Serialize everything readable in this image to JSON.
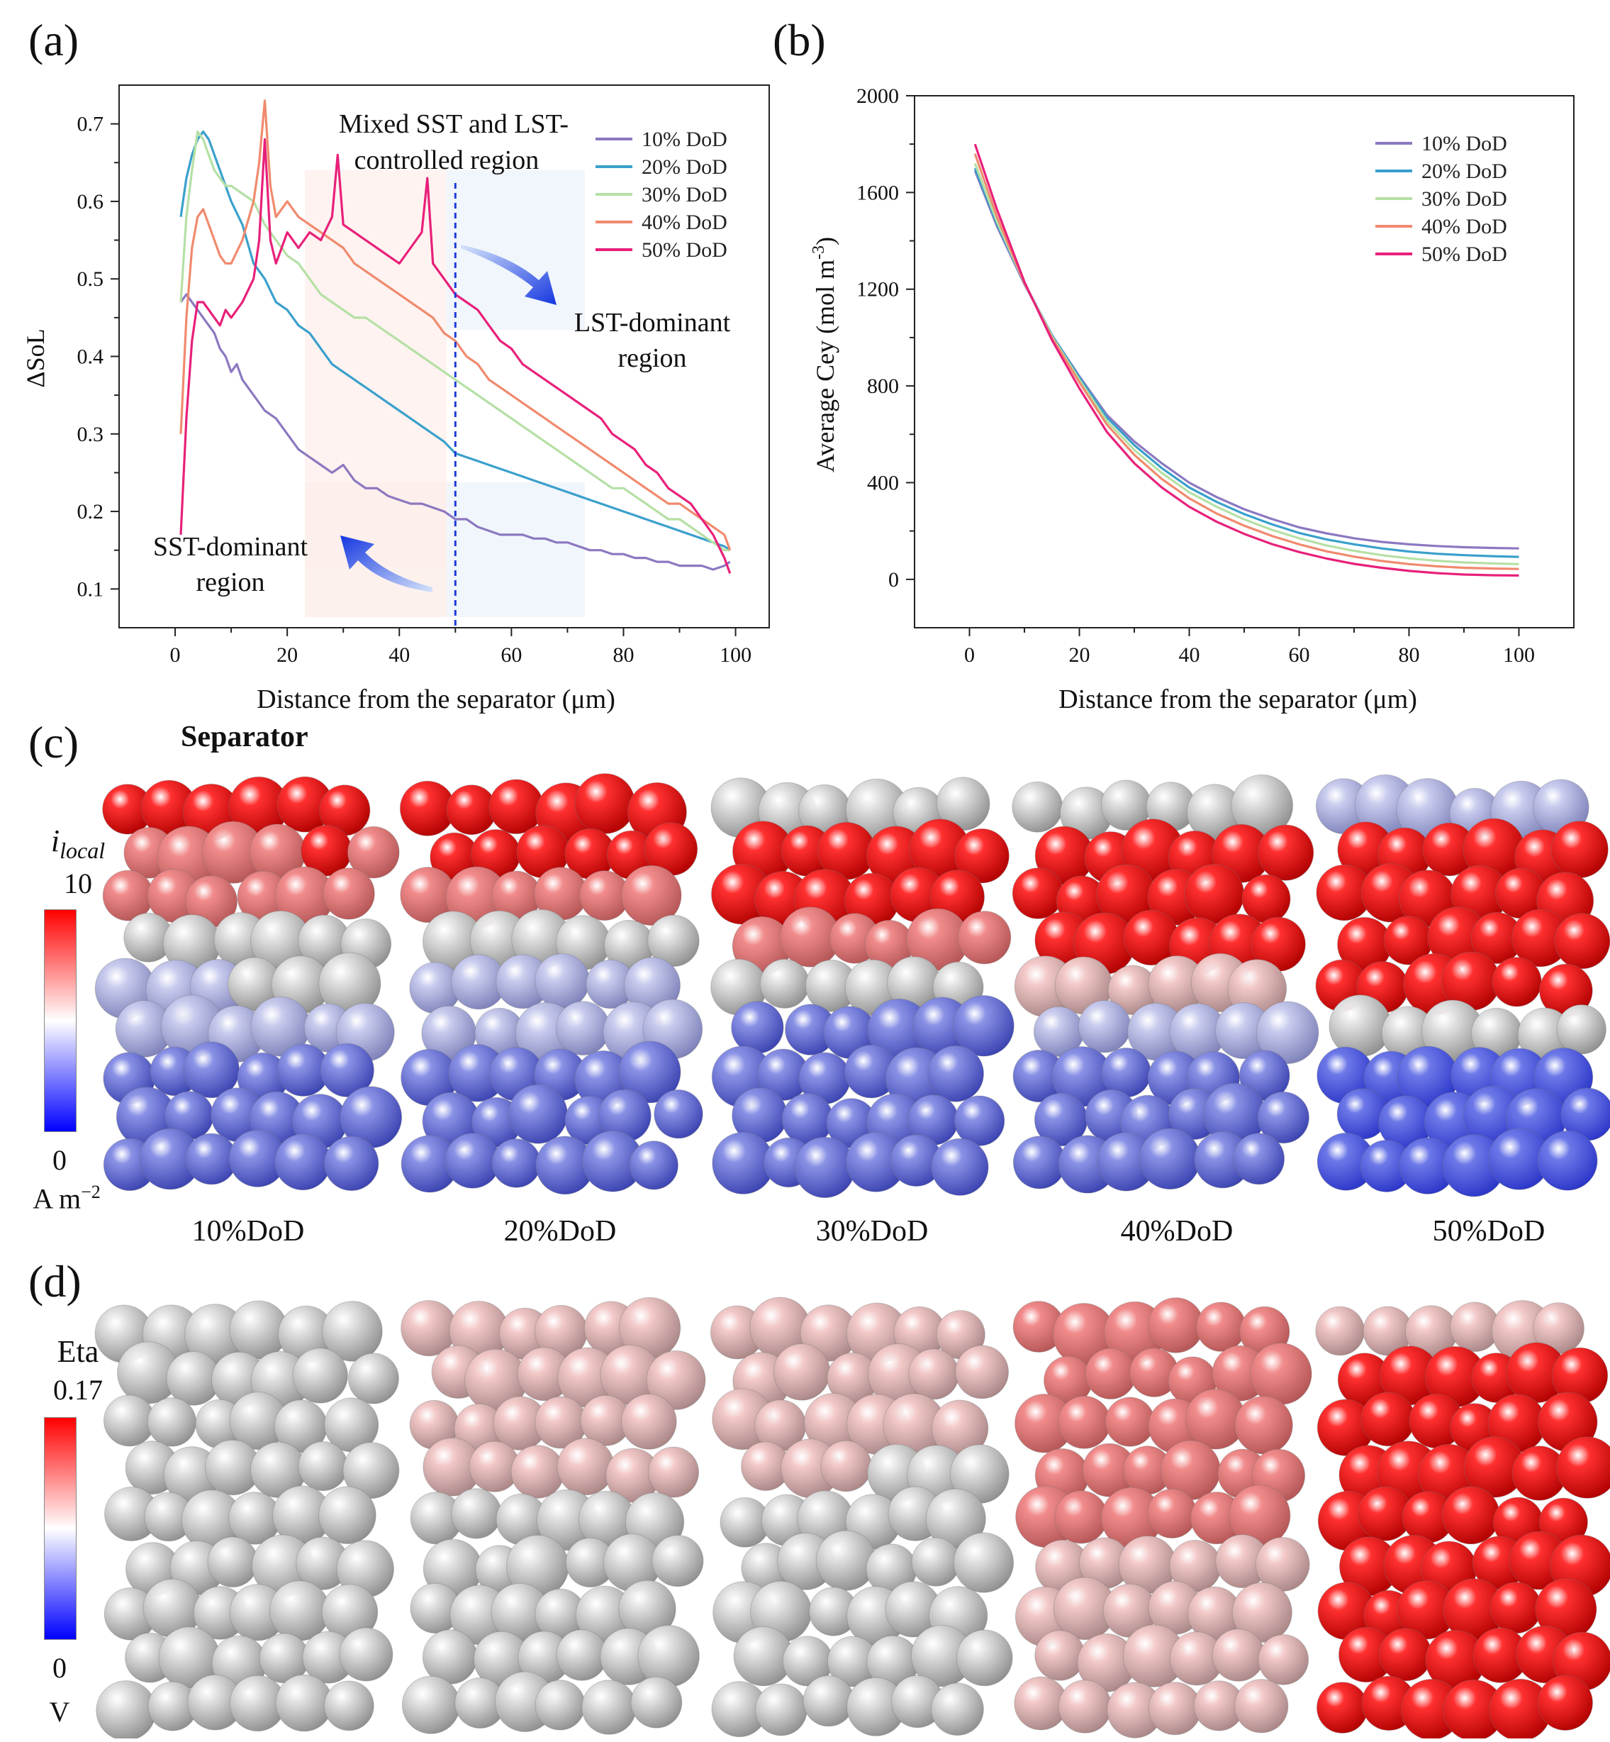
{
  "panels": {
    "a": "(a)",
    "b": "(b)",
    "c": "(c)",
    "d": "(d)"
  },
  "chart_data": [
    {
      "id": "a",
      "type": "line",
      "title": "",
      "xlabel": "Distance from the separator (μm)",
      "ylabel": "ΔSoL",
      "xlim": [
        -10,
        106
      ],
      "ylim": [
        0.05,
        0.75
      ],
      "xticks": [
        0,
        20,
        40,
        60,
        80,
        100
      ],
      "yticks": [
        0.1,
        0.2,
        0.3,
        0.4,
        0.5,
        0.6,
        0.7
      ],
      "legend_position": "top-right",
      "annotations": {
        "mixed_line1": "Mixed SST and LST-",
        "mixed_line2": "controlled region",
        "lst_line1": "LST-dominant",
        "lst_line2": "region",
        "sst_line1": "SST-dominant",
        "sst_line2": "region"
      },
      "divider_x": 50,
      "series": [
        {
          "name": "10% DoD",
          "color": "#8C78C0",
          "x": [
            1,
            2,
            3,
            4,
            5,
            6,
            7,
            8,
            9,
            10,
            11,
            12,
            14,
            16,
            18,
            20,
            22,
            24,
            26,
            28,
            30,
            32,
            34,
            36,
            38,
            40,
            42,
            44,
            46,
            48,
            50,
            52,
            54,
            56,
            58,
            60,
            62,
            64,
            66,
            68,
            70,
            72,
            74,
            76,
            78,
            80,
            82,
            84,
            86,
            88,
            90,
            92,
            94,
            96,
            98,
            99
          ],
          "values": [
            0.47,
            0.48,
            0.47,
            0.46,
            0.45,
            0.44,
            0.43,
            0.41,
            0.4,
            0.38,
            0.39,
            0.37,
            0.35,
            0.33,
            0.32,
            0.3,
            0.28,
            0.27,
            0.26,
            0.25,
            0.26,
            0.24,
            0.23,
            0.23,
            0.22,
            0.215,
            0.21,
            0.21,
            0.205,
            0.2,
            0.19,
            0.19,
            0.18,
            0.175,
            0.17,
            0.17,
            0.17,
            0.165,
            0.165,
            0.16,
            0.16,
            0.155,
            0.15,
            0.15,
            0.145,
            0.145,
            0.14,
            0.14,
            0.135,
            0.135,
            0.13,
            0.13,
            0.13,
            0.125,
            0.13,
            0.135
          ]
        },
        {
          "name": "20% DoD",
          "color": "#3AA0CC",
          "x": [
            1,
            2,
            3,
            4,
            5,
            6,
            7,
            8,
            9,
            10,
            12,
            14,
            16,
            18,
            20,
            22,
            24,
            26,
            28,
            30,
            32,
            34,
            36,
            38,
            40,
            42,
            44,
            46,
            48,
            50,
            52,
            54,
            56,
            58,
            60,
            62,
            64,
            66,
            68,
            70,
            72,
            74,
            76,
            78,
            80,
            82,
            84,
            86,
            88,
            90,
            92,
            94,
            96,
            98,
            99
          ],
          "values": [
            0.58,
            0.63,
            0.66,
            0.68,
            0.69,
            0.68,
            0.66,
            0.64,
            0.62,
            0.6,
            0.57,
            0.52,
            0.5,
            0.47,
            0.46,
            0.44,
            0.43,
            0.41,
            0.39,
            0.38,
            0.37,
            0.36,
            0.35,
            0.34,
            0.33,
            0.32,
            0.31,
            0.3,
            0.29,
            0.275,
            0.27,
            0.265,
            0.26,
            0.255,
            0.25,
            0.245,
            0.24,
            0.235,
            0.23,
            0.225,
            0.22,
            0.215,
            0.21,
            0.205,
            0.2,
            0.195,
            0.19,
            0.185,
            0.18,
            0.175,
            0.17,
            0.165,
            0.16,
            0.155,
            0.15
          ]
        },
        {
          "name": "30% DoD",
          "color": "#B5E0A5",
          "x": [
            1,
            2,
            3,
            4,
            5,
            6,
            7,
            8,
            9,
            10,
            12,
            14,
            16,
            18,
            20,
            22,
            24,
            26,
            28,
            30,
            32,
            34,
            36,
            38,
            40,
            42,
            44,
            46,
            48,
            50,
            52,
            54,
            56,
            58,
            60,
            62,
            64,
            66,
            68,
            70,
            72,
            74,
            76,
            78,
            80,
            82,
            84,
            86,
            88,
            90,
            92,
            94,
            96,
            98,
            99
          ],
          "values": [
            0.47,
            0.58,
            0.64,
            0.69,
            0.68,
            0.66,
            0.64,
            0.63,
            0.62,
            0.62,
            0.61,
            0.6,
            0.57,
            0.55,
            0.53,
            0.52,
            0.5,
            0.48,
            0.47,
            0.46,
            0.45,
            0.45,
            0.44,
            0.43,
            0.42,
            0.41,
            0.4,
            0.39,
            0.38,
            0.37,
            0.36,
            0.35,
            0.34,
            0.33,
            0.32,
            0.31,
            0.3,
            0.29,
            0.28,
            0.27,
            0.26,
            0.25,
            0.24,
            0.23,
            0.23,
            0.22,
            0.21,
            0.2,
            0.19,
            0.19,
            0.18,
            0.17,
            0.16,
            0.15,
            0.15
          ]
        },
        {
          "name": "40% DoD",
          "color": "#F08A6E",
          "x": [
            1,
            2,
            3,
            4,
            5,
            6,
            7,
            8,
            9,
            10,
            12,
            14,
            15,
            16,
            17,
            18,
            20,
            22,
            24,
            26,
            28,
            30,
            32,
            34,
            36,
            38,
            40,
            42,
            44,
            46,
            48,
            50,
            52,
            54,
            56,
            58,
            60,
            62,
            64,
            66,
            68,
            70,
            72,
            74,
            76,
            78,
            80,
            82,
            84,
            86,
            88,
            90,
            92,
            94,
            96,
            98,
            99
          ],
          "values": [
            0.3,
            0.45,
            0.54,
            0.58,
            0.59,
            0.57,
            0.55,
            0.53,
            0.52,
            0.52,
            0.55,
            0.6,
            0.65,
            0.73,
            0.62,
            0.58,
            0.6,
            0.58,
            0.57,
            0.56,
            0.55,
            0.54,
            0.52,
            0.51,
            0.5,
            0.49,
            0.48,
            0.47,
            0.46,
            0.45,
            0.43,
            0.42,
            0.4,
            0.39,
            0.37,
            0.36,
            0.35,
            0.34,
            0.33,
            0.32,
            0.31,
            0.3,
            0.29,
            0.28,
            0.27,
            0.26,
            0.25,
            0.24,
            0.23,
            0.22,
            0.21,
            0.21,
            0.2,
            0.19,
            0.18,
            0.17,
            0.15
          ]
        },
        {
          "name": "50% DoD",
          "color": "#E8207A",
          "x": [
            1,
            2,
            3,
            4,
            5,
            6,
            7,
            8,
            9,
            10,
            12,
            14,
            15,
            16,
            17,
            18,
            20,
            22,
            24,
            26,
            28,
            29,
            30,
            32,
            34,
            36,
            38,
            40,
            42,
            44,
            45,
            46,
            48,
            50,
            52,
            54,
            56,
            58,
            60,
            62,
            64,
            66,
            68,
            70,
            72,
            74,
            76,
            78,
            80,
            82,
            84,
            86,
            88,
            90,
            92,
            94,
            96,
            98,
            99
          ],
          "values": [
            0.17,
            0.32,
            0.42,
            0.47,
            0.47,
            0.46,
            0.45,
            0.44,
            0.46,
            0.45,
            0.47,
            0.5,
            0.55,
            0.68,
            0.55,
            0.52,
            0.56,
            0.54,
            0.56,
            0.55,
            0.58,
            0.66,
            0.57,
            0.56,
            0.55,
            0.54,
            0.53,
            0.52,
            0.54,
            0.56,
            0.63,
            0.52,
            0.5,
            0.48,
            0.47,
            0.46,
            0.44,
            0.42,
            0.41,
            0.39,
            0.38,
            0.37,
            0.36,
            0.35,
            0.34,
            0.33,
            0.32,
            0.3,
            0.29,
            0.28,
            0.26,
            0.25,
            0.23,
            0.22,
            0.21,
            0.19,
            0.17,
            0.14,
            0.12
          ]
        }
      ]
    },
    {
      "id": "b",
      "type": "line",
      "title": "",
      "xlabel": "Distance from the separator (μm)",
      "ylabel": "Average Cey (mol m",
      "ylabel_sup": "-3",
      "ylabel_end": ")",
      "xlim": [
        -10,
        110
      ],
      "ylim": [
        -200,
        2000
      ],
      "xticks": [
        0,
        20,
        40,
        60,
        80,
        100
      ],
      "yticks": [
        0,
        400,
        800,
        1200,
        1600,
        2000
      ],
      "legend_position": "top-right",
      "series": [
        {
          "name": "10% DoD",
          "color": "#8C78C0",
          "x": [
            1,
            5,
            10,
            15,
            20,
            25,
            30,
            35,
            40,
            45,
            50,
            55,
            60,
            65,
            70,
            75,
            80,
            85,
            90,
            95,
            100
          ],
          "values": [
            1690,
            1460,
            1220,
            1010,
            840,
            680,
            570,
            480,
            400,
            340,
            290,
            250,
            215,
            190,
            170,
            155,
            145,
            138,
            133,
            130,
            128
          ]
        },
        {
          "name": "20% DoD",
          "color": "#3AA0CC",
          "x": [
            1,
            5,
            10,
            15,
            20,
            25,
            30,
            35,
            40,
            45,
            50,
            55,
            60,
            65,
            70,
            75,
            80,
            85,
            90,
            95,
            100
          ],
          "values": [
            1700,
            1470,
            1225,
            1010,
            835,
            670,
            555,
            460,
            380,
            320,
            270,
            228,
            192,
            165,
            145,
            128,
            115,
            106,
            100,
            96,
            93
          ]
        },
        {
          "name": "30% DoD",
          "color": "#B5E0A5",
          "x": [
            1,
            5,
            10,
            15,
            20,
            25,
            30,
            35,
            40,
            45,
            50,
            55,
            60,
            65,
            70,
            75,
            80,
            85,
            90,
            95,
            100
          ],
          "values": [
            1720,
            1480,
            1225,
            1005,
            825,
            655,
            535,
            440,
            360,
            300,
            248,
            205,
            170,
            140,
            118,
            100,
            87,
            77,
            70,
            66,
            63
          ]
        },
        {
          "name": "40% DoD",
          "color": "#F08A6E",
          "x": [
            1,
            5,
            10,
            15,
            20,
            25,
            30,
            35,
            40,
            45,
            50,
            55,
            60,
            65,
            70,
            75,
            80,
            85,
            90,
            95,
            100
          ],
          "values": [
            1760,
            1500,
            1225,
            1000,
            815,
            640,
            515,
            415,
            335,
            272,
            222,
            180,
            145,
            116,
            94,
            76,
            63,
            54,
            48,
            45,
            43
          ]
        },
        {
          "name": "50% DoD",
          "color": "#E8207A",
          "x": [
            1,
            5,
            10,
            15,
            20,
            25,
            30,
            35,
            40,
            45,
            50,
            55,
            60,
            65,
            70,
            75,
            80,
            85,
            90,
            95,
            100
          ],
          "values": [
            1800,
            1530,
            1230,
            990,
            790,
            610,
            480,
            380,
            300,
            238,
            188,
            146,
            113,
            86,
            64,
            48,
            35,
            26,
            20,
            17,
            16
          ]
        }
      ]
    }
  ],
  "panel_c": {
    "title": "Separator",
    "colorbar": {
      "title_main": "i",
      "title_sub": "local",
      "max": "10",
      "min": "0",
      "unit_main": "A m",
      "unit_sup": "−2",
      "color_top": "#FF0000",
      "color_mid": "#FFFFFF",
      "color_bottom": "#0000FF"
    },
    "captions": [
      "10%DoD",
      "20%DoD",
      "30%DoD",
      "40%DoD",
      "50%DoD"
    ]
  },
  "panel_d": {
    "colorbar": {
      "title": "Eta",
      "max": "0.17",
      "min": "0",
      "unit": "V",
      "color_top": "#FF0000",
      "color_mid": "#FFFFFF",
      "color_bottom": "#0000FF"
    }
  }
}
